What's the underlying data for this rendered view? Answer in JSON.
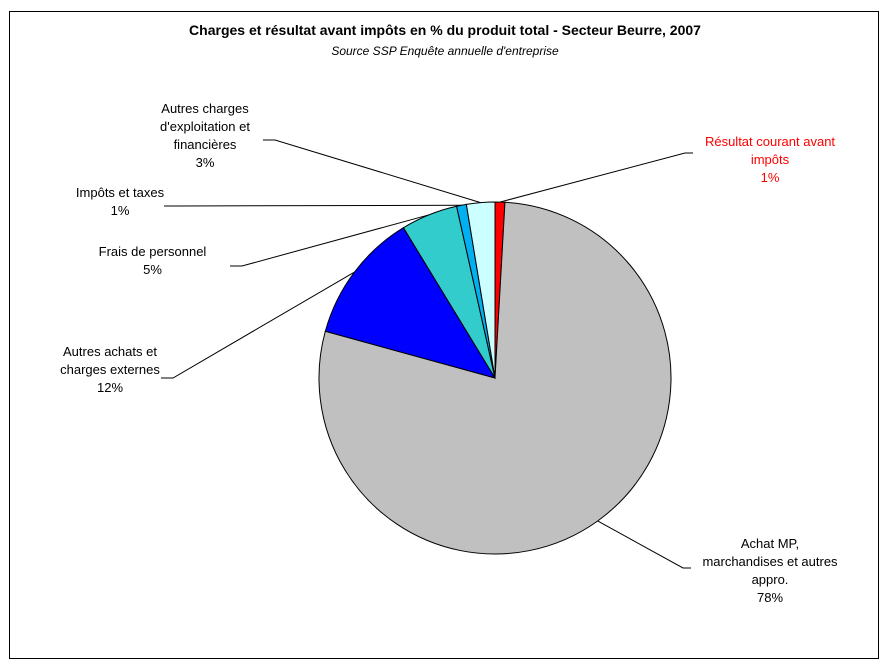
{
  "chart_data": {
    "type": "pie",
    "title": "Charges et résultat avant impôts en % du produit total - Secteur Beurre, 2007",
    "subtitle": "Source SSP Enquête annuelle d'entreprise",
    "slices": [
      {
        "label_lines": [
          "Résultat courant avant",
          "impôts"
        ],
        "pct_text": "1%",
        "value": 0.9,
        "color": "#FF0000",
        "label_color": "#FF0000"
      },
      {
        "label_lines": [
          "Achat MP,",
          "marchandises et autres",
          "appro."
        ],
        "pct_text": "78%",
        "value": 78.3,
        "color": "#C0C0C0",
        "label_color": "#000000"
      },
      {
        "label_lines": [
          "Autres achats et",
          "charges externes"
        ],
        "pct_text": "12%",
        "value": 12.0,
        "color": "#0000FF",
        "label_color": "#000000"
      },
      {
        "label_lines": [
          "Frais de personnel"
        ],
        "pct_text": "5%",
        "value": 5.2,
        "color": "#33CCCC",
        "label_color": "#000000"
      },
      {
        "label_lines": [
          "Impôts et taxes"
        ],
        "pct_text": "1%",
        "value": 0.9,
        "color": "#00B0F0",
        "label_color": "#000000"
      },
      {
        "label_lines": [
          "Autres charges",
          "d'exploitation et",
          "financières"
        ],
        "pct_text": "3%",
        "value": 2.6,
        "color": "#CCFFFF",
        "label_color": "#000000"
      }
    ]
  }
}
